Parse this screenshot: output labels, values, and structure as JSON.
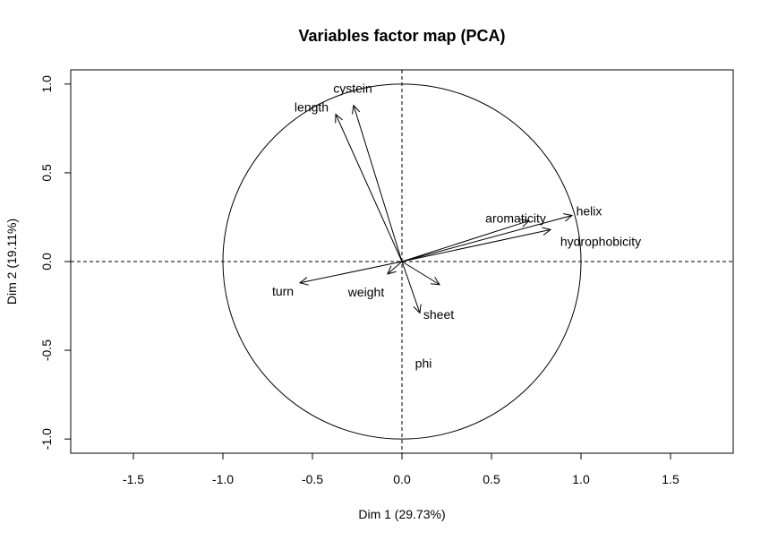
{
  "chart_data": {
    "type": "scatter",
    "subtype": "pca-correlation-circle",
    "title": "Variables factor map (PCA)",
    "xlabel": "Dim 1 (29.73%)",
    "ylabel": "Dim 2 (19.11%)",
    "xlim": [
      -1.85,
      1.85
    ],
    "ylim": [
      -1.08,
      1.08
    ],
    "xticks": [
      "-1.5",
      "-1.0",
      "-0.5",
      "0.0",
      "0.5",
      "1.0",
      "1.5"
    ],
    "yticks": [
      "-1.0",
      "-0.5",
      "0.0",
      "0.5",
      "1.0"
    ],
    "unit_circle": true,
    "reference_lines": "dashed lines at x = 0 and y = 0",
    "grid": false,
    "variables": [
      {
        "name": "length",
        "x": -0.37,
        "y": 0.83
      },
      {
        "name": "cystein",
        "x": -0.27,
        "y": 0.88
      },
      {
        "name": "helix",
        "x": 0.95,
        "y": 0.26
      },
      {
        "name": "aromaticity",
        "x": 0.71,
        "y": 0.23
      },
      {
        "name": "hydrophobicity",
        "x": 0.83,
        "y": 0.18
      },
      {
        "name": "turn",
        "x": -0.57,
        "y": -0.12
      },
      {
        "name": "weight",
        "x": -0.08,
        "y": -0.07
      },
      {
        "name": "sheet",
        "x": 0.21,
        "y": -0.13
      },
      {
        "name": "phi",
        "x": 0.1,
        "y": -0.29
      }
    ]
  }
}
